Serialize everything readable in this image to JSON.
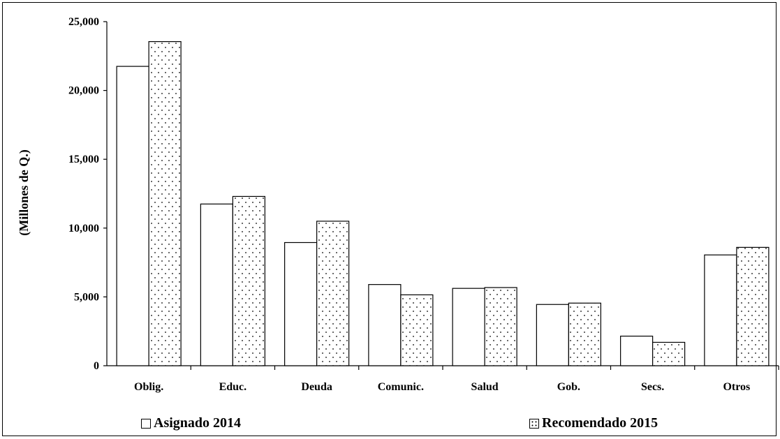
{
  "chart_data": {
    "type": "bar",
    "ylabel": "(Millones de Q.)",
    "ylim": [
      0,
      25000
    ],
    "yticks": [
      0,
      5000,
      10000,
      15000,
      20000,
      25000
    ],
    "ytick_labels": [
      "0",
      "5,000",
      "10,000",
      "15,000",
      "20,000",
      "25,000"
    ],
    "categories": [
      "Oblig.",
      "Educ.",
      "Deuda",
      "Comunic.",
      "Salud",
      "Gob.",
      "Secs.",
      "Otros"
    ],
    "series": [
      {
        "name": "Asignado 2014",
        "pattern": "none",
        "values": [
          21750,
          11750,
          8950,
          5900,
          5620,
          4450,
          2150,
          8050
        ]
      },
      {
        "name": "Recomendado 2015",
        "pattern": "dots",
        "values": [
          23550,
          12300,
          10500,
          5150,
          5680,
          4550,
          1700,
          8600
        ]
      }
    ],
    "legend_position": "bottom",
    "grid": false
  }
}
